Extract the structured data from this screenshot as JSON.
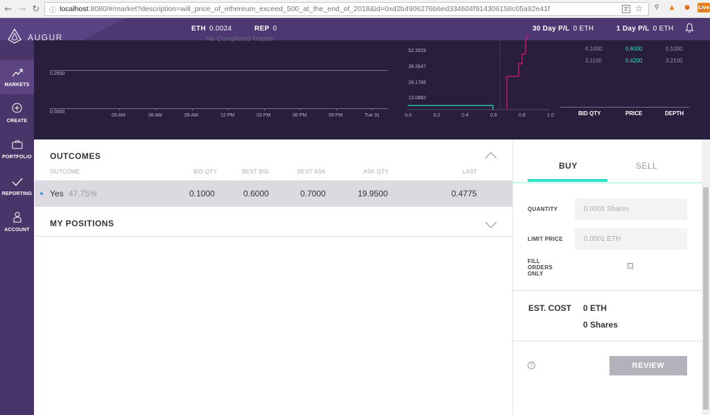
{
  "browser": {
    "url_host": "localhost",
    "url_path": ":8080/#/market?description=will_price_of_ethereum_exceed_500_at_the_end_of_2018&id=0xd2b4906276b6ed334604f914306158c05a92e41f",
    "ext_badge": "Live"
  },
  "header": {
    "logo": "AUGUR",
    "eth_label": "ETH",
    "eth_value": "0.0024",
    "rep_label": "REP",
    "rep_value": "0",
    "pl30_label": "30 Day P/L",
    "pl30_value": "0 ETH",
    "pl1_label": "1 Day P/L",
    "pl1_value": "0 ETH"
  },
  "sidebar": {
    "items": [
      {
        "label": "MARKETS"
      },
      {
        "label": "CREATE"
      },
      {
        "label": "PORTFOLIO"
      },
      {
        "label": "REPORTING"
      },
      {
        "label": "ACCOUNT"
      }
    ]
  },
  "price_chart": {
    "empty_text": "No Completed Trades",
    "y_labels": [
      "0.2500",
      "0.0000"
    ],
    "x_labels": [
      "03 AM",
      "06 AM",
      "09 AM",
      "12 PM",
      "03 PM",
      "06 PM",
      "09 PM",
      "Tue 31"
    ]
  },
  "depth_chart": {
    "y_labels": [
      "52.3529",
      "39.2647",
      "26.1765",
      "13.0882"
    ],
    "x_labels": [
      "0.0",
      "0.2",
      "0.4",
      "0.6",
      "0.8",
      "1.0"
    ]
  },
  "order_book": {
    "rows": [
      {
        "qty": "0.1000",
        "price": "0.6000",
        "depth": "0.1000"
      },
      {
        "qty": "3.1100",
        "price": "0.4200",
        "depth": "3.2100"
      }
    ],
    "headers": {
      "qty": "BID QTY",
      "price": "PRICE",
      "depth": "DEPTH"
    }
  },
  "outcomes": {
    "title": "OUTCOMES",
    "columns": {
      "outcome": "OUTCOME",
      "bid_qty": "BID QTY",
      "best_bid": "BEST BID",
      "best_ask": "BEST ASK",
      "ask_qty": "ASK QTY",
      "last": "LAST"
    },
    "row": {
      "name": "Yes",
      "pct": "47.75%",
      "bid_qty": "0.1000",
      "best_bid": "0.6000",
      "best_ask": "0.7000",
      "ask_qty": "19.9500",
      "last": "0.4775"
    }
  },
  "positions": {
    "title": "MY POSITIONS"
  },
  "trade": {
    "buy_tab": "BUY",
    "sell_tab": "SELL",
    "quantity_label": "QUANTITY",
    "quantity_placeholder": "0.0001 Shares",
    "limit_label": "LIMIT PRICE",
    "limit_placeholder": "0.0001 ETH",
    "fill_label_1": "FILL",
    "fill_label_2": "ORDERS",
    "fill_label_3": "ONLY",
    "est_cost_label": "EST. COST",
    "est_cost_eth": "0 ETH",
    "est_cost_shares": "0 Shares",
    "review_label": "REVIEW"
  },
  "colors": {
    "header_purple": "#4d3873",
    "chart_bg": "#2a1e3d",
    "accent_teal": "#2ae0c5",
    "ask_pink": "#e8176b"
  }
}
